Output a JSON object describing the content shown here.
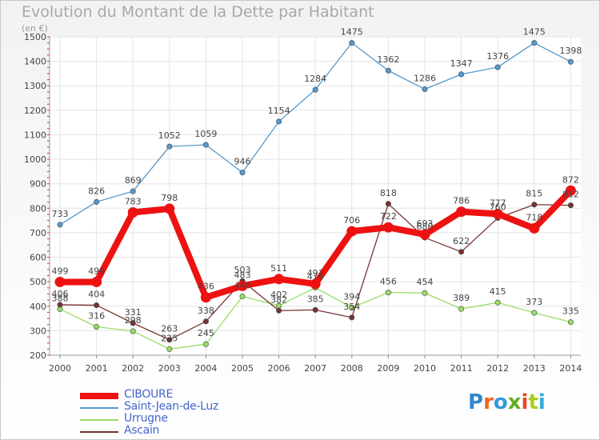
{
  "title": "Evolution du Montant de la Dette par Habitant",
  "unit_label": "(en €)",
  "logo": {
    "text": "Proxiti",
    "letter_colors": [
      "#3388cc",
      "#ee6622",
      "#3399dd",
      "#66aa22",
      "#ee4422",
      "#aacc22",
      "#33aadd"
    ]
  },
  "chart_data": {
    "type": "line",
    "title": "Evolution du Montant de la Dette par Habitant",
    "ylabel": "(en €)",
    "xlabel": "",
    "x": [
      "2000",
      "2001",
      "2002",
      "2003",
      "2004",
      "2005",
      "2006",
      "2007",
      "2008",
      "2009",
      "2010",
      "2011",
      "2012",
      "2013",
      "2014"
    ],
    "ylim": [
      200,
      1500
    ],
    "yticks": [
      200,
      300,
      400,
      500,
      600,
      700,
      800,
      900,
      1000,
      1100,
      1200,
      1300,
      1400,
      1500
    ],
    "grid": true,
    "legend": "bottom-left",
    "series": [
      {
        "name": "Saint-Jean-de-Luz",
        "color": "#5599cc",
        "values": [
          733,
          826,
          869,
          1052,
          1059,
          946,
          1154,
          1284,
          1475,
          1362,
          1286,
          1347,
          1376,
          1475,
          1398
        ]
      },
      {
        "name": "Urrugne",
        "color": "#99dd66",
        "values": [
          388,
          316,
          298,
          225,
          245,
          440,
          402,
          476,
          394,
          456,
          454,
          389,
          415,
          373,
          335
        ]
      },
      {
        "name": "Ascain",
        "color": "#773333",
        "values": [
          406,
          404,
          331,
          263,
          338,
          503,
          382,
          385,
          354,
          818,
          680,
          622,
          760,
          815,
          812
        ]
      },
      {
        "name": "CIBOURE",
        "color": "#ee1111",
        "values": [
          499,
          499,
          783,
          798,
          436,
          483,
          511,
          491,
          706,
          722,
          693,
          786,
          777,
          718,
          872
        ]
      }
    ],
    "legend_order": [
      "CIBOURE",
      "Saint-Jean-de-Luz",
      "Urrugne",
      "Ascain"
    ]
  }
}
